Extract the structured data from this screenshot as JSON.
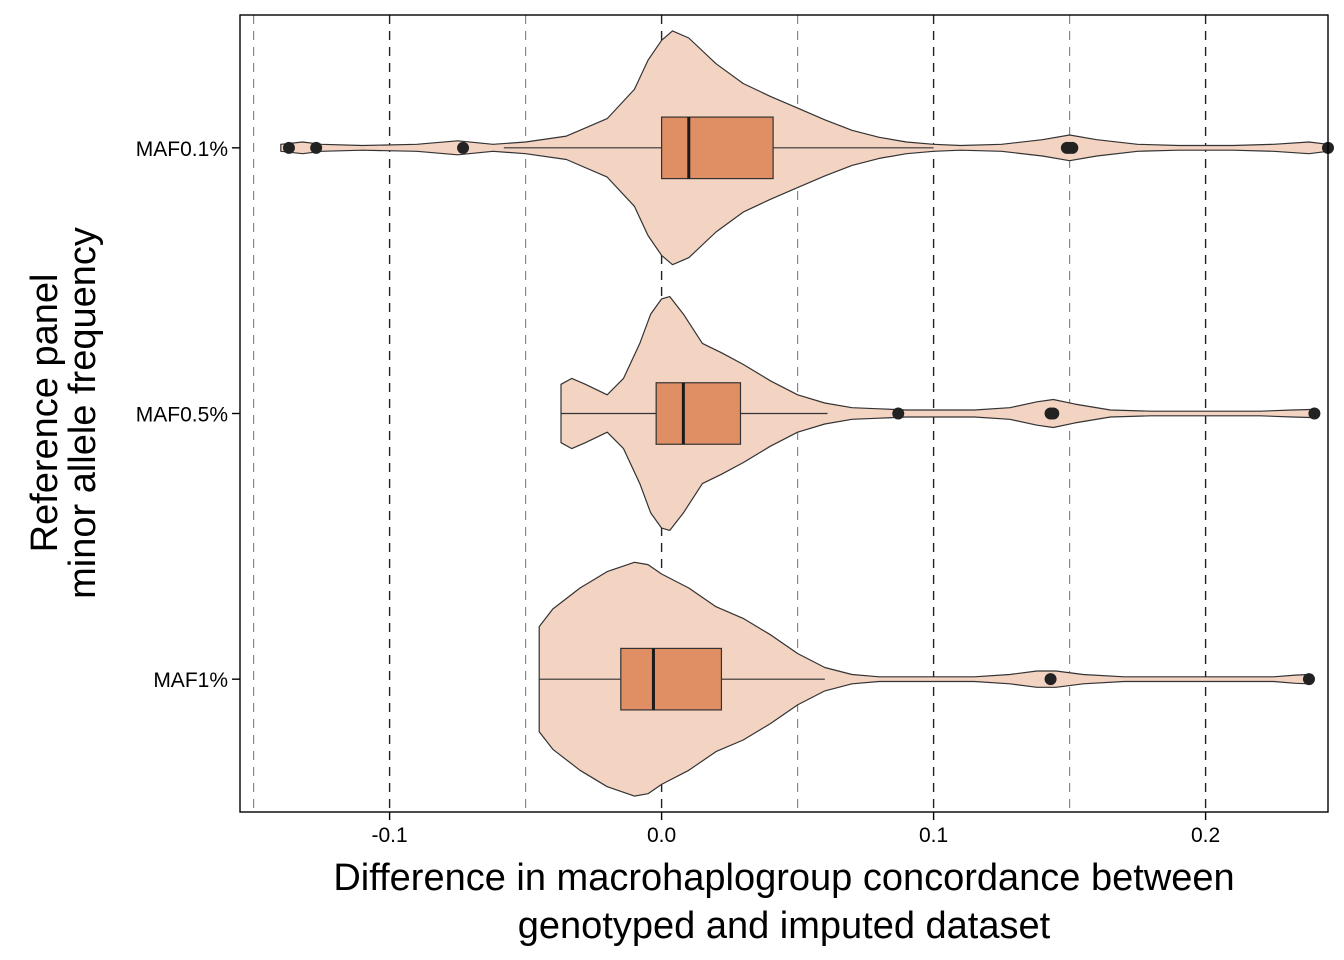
{
  "chart_data": {
    "type": "violin",
    "orientation": "horizontal",
    "xlabel_lines": [
      "Difference in macrohaplogroup concordance between",
      "genotyped and imputed dataset"
    ],
    "ylabel_lines": [
      "Reference panel",
      "minor allele frequency"
    ],
    "xlim": [
      -0.155,
      0.245
    ],
    "x_ticks": [
      -0.1,
      0.0,
      0.1,
      0.2
    ],
    "x_tick_labels": [
      "-0.1",
      "0.0",
      "0.1",
      "0.2"
    ],
    "major_reference_lines": [
      -0.1,
      0.0,
      0.1,
      0.2
    ],
    "minor_reference_lines": [
      -0.15,
      -0.05,
      0.05,
      0.15,
      0.25
    ],
    "grid": false,
    "legend": "none",
    "colors": {
      "violin_fill": "#F3D3C2",
      "box_fill": "#E08E63",
      "outline": "#333333",
      "outlier": "#222222",
      "major_ref_line": "#222222",
      "minor_ref_line": "#888888"
    },
    "categories": [
      "MAF0.1%",
      "MAF0.5%",
      "MAF1%"
    ],
    "groups": [
      {
        "label": "MAF0.1%",
        "box": {
          "q1": 0.0,
          "median": 0.01,
          "q3": 0.041,
          "whisker_low": -0.058,
          "whisker_high": 0.1
        },
        "outliers": [
          -0.137,
          -0.127,
          -0.073,
          0.149,
          0.15,
          0.151,
          0.245
        ],
        "density": [
          [
            -0.14,
            0.03
          ],
          [
            -0.132,
            0.05
          ],
          [
            -0.125,
            0.03
          ],
          [
            -0.11,
            0.02
          ],
          [
            -0.09,
            0.03
          ],
          [
            -0.075,
            0.06
          ],
          [
            -0.062,
            0.03
          ],
          [
            -0.05,
            0.05
          ],
          [
            -0.035,
            0.1
          ],
          [
            -0.02,
            0.25
          ],
          [
            -0.01,
            0.5
          ],
          [
            -0.005,
            0.75
          ],
          [
            0.0,
            0.92
          ],
          [
            0.004,
            1.0
          ],
          [
            0.01,
            0.94
          ],
          [
            0.02,
            0.72
          ],
          [
            0.03,
            0.55
          ],
          [
            0.04,
            0.44
          ],
          [
            0.05,
            0.34
          ],
          [
            0.06,
            0.24
          ],
          [
            0.07,
            0.15
          ],
          [
            0.08,
            0.09
          ],
          [
            0.09,
            0.05
          ],
          [
            0.1,
            0.03
          ],
          [
            0.11,
            0.02
          ],
          [
            0.125,
            0.03
          ],
          [
            0.14,
            0.07
          ],
          [
            0.15,
            0.11
          ],
          [
            0.16,
            0.07
          ],
          [
            0.175,
            0.03
          ],
          [
            0.19,
            0.02
          ],
          [
            0.21,
            0.02
          ],
          [
            0.225,
            0.03
          ],
          [
            0.238,
            0.05
          ],
          [
            0.245,
            0.03
          ]
        ]
      },
      {
        "label": "MAF0.5%",
        "box": {
          "q1": -0.002,
          "median": 0.008,
          "q3": 0.029,
          "whisker_low": -0.037,
          "whisker_high": 0.061
        },
        "outliers": [
          0.087,
          0.143,
          0.144,
          0.24
        ],
        "density": [
          [
            -0.037,
            0.25
          ],
          [
            -0.033,
            0.3
          ],
          [
            -0.028,
            0.25
          ],
          [
            -0.02,
            0.16
          ],
          [
            -0.014,
            0.3
          ],
          [
            -0.008,
            0.6
          ],
          [
            -0.004,
            0.85
          ],
          [
            0.0,
            0.98
          ],
          [
            0.003,
            1.0
          ],
          [
            0.008,
            0.85
          ],
          [
            0.015,
            0.6
          ],
          [
            0.022,
            0.52
          ],
          [
            0.03,
            0.42
          ],
          [
            0.04,
            0.28
          ],
          [
            0.05,
            0.16
          ],
          [
            0.06,
            0.09
          ],
          [
            0.07,
            0.05
          ],
          [
            0.08,
            0.04
          ],
          [
            0.09,
            0.03
          ],
          [
            0.1,
            0.03
          ],
          [
            0.115,
            0.03
          ],
          [
            0.128,
            0.05
          ],
          [
            0.138,
            0.1
          ],
          [
            0.144,
            0.12
          ],
          [
            0.152,
            0.08
          ],
          [
            0.165,
            0.03
          ],
          [
            0.18,
            0.02
          ],
          [
            0.2,
            0.02
          ],
          [
            0.22,
            0.02
          ],
          [
            0.232,
            0.03
          ],
          [
            0.24,
            0.035
          ]
        ]
      },
      {
        "label": "MAF1%",
        "box": {
          "q1": -0.015,
          "median": -0.003,
          "q3": 0.022,
          "whisker_low": -0.045,
          "whisker_high": 0.06
        },
        "outliers": [
          0.143,
          0.238
        ],
        "density": [
          [
            -0.045,
            0.45
          ],
          [
            -0.04,
            0.6
          ],
          [
            -0.03,
            0.78
          ],
          [
            -0.02,
            0.92
          ],
          [
            -0.01,
            1.0
          ],
          [
            -0.005,
            0.98
          ],
          [
            0.0,
            0.9
          ],
          [
            0.01,
            0.78
          ],
          [
            0.02,
            0.62
          ],
          [
            0.03,
            0.52
          ],
          [
            0.04,
            0.38
          ],
          [
            0.05,
            0.22
          ],
          [
            0.06,
            0.1
          ],
          [
            0.07,
            0.04
          ],
          [
            0.08,
            0.02
          ],
          [
            0.1,
            0.02
          ],
          [
            0.115,
            0.02
          ],
          [
            0.128,
            0.04
          ],
          [
            0.138,
            0.07
          ],
          [
            0.145,
            0.07
          ],
          [
            0.155,
            0.04
          ],
          [
            0.17,
            0.02
          ],
          [
            0.2,
            0.02
          ],
          [
            0.225,
            0.02
          ],
          [
            0.233,
            0.035
          ],
          [
            0.238,
            0.04
          ]
        ]
      }
    ]
  }
}
